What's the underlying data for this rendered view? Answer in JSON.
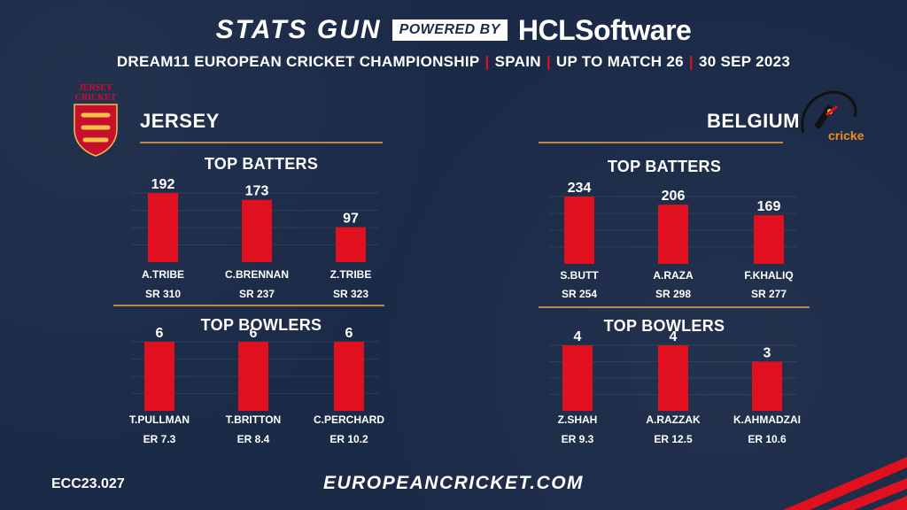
{
  "header": {
    "brand": "STATS GUN",
    "powered_by": "POWERED BY",
    "sponsor": "HCLSoftware",
    "subtitle_parts": [
      "DREAM11 EUROPEAN CRICKET CHAMPIONSHIP",
      "SPAIN",
      "UP TO MATCH 26",
      "30 SEP 2023"
    ],
    "separator": "|"
  },
  "footer": {
    "code": "ECC23.027",
    "site": "EUROPEANCRICKET.COM"
  },
  "logos": {
    "jersey_text": "JERSEY CRICKET",
    "belgium_text": "cricket belgium"
  },
  "colors": {
    "background": "#1b2a47",
    "bar": "#e0101e",
    "gold": "#b8894a"
  },
  "teams": [
    {
      "name": "JERSEY",
      "batters_title": "TOP BATTERS",
      "bowlers_title": "TOP BOWLERS"
    },
    {
      "name": "BELGIUM",
      "batters_title": "TOP BATTERS",
      "bowlers_title": "TOP BOWLERS"
    }
  ],
  "chart_data": [
    {
      "type": "bar",
      "title": "TOP BATTERS",
      "categories": [
        "A.TRIBE",
        "C.BRENNAN",
        "Z.TRIBE"
      ],
      "values": [
        192,
        173,
        97
      ],
      "sublabels": [
        "SR 310",
        "SR 237",
        "SR 323"
      ],
      "ylim": [
        0,
        192
      ]
    },
    {
      "type": "bar",
      "title": "TOP BOWLERS",
      "categories": [
        "T.PULLMAN",
        "T.BRITTON",
        "C.PERCHARD"
      ],
      "values": [
        6,
        6,
        6
      ],
      "sublabels": [
        "ER 7.3",
        "ER 8.4",
        "ER 10.2"
      ],
      "ylim": [
        0,
        6
      ]
    },
    {
      "type": "bar",
      "title": "TOP BATTERS",
      "categories": [
        "S.BUTT",
        "A.RAZA",
        "F.KHALIQ"
      ],
      "values": [
        234,
        206,
        169
      ],
      "sublabels": [
        "SR 254",
        "SR 298",
        "SR 277"
      ],
      "ylim": [
        0,
        234
      ]
    },
    {
      "type": "bar",
      "title": "TOP BOWLERS",
      "categories": [
        "Z.SHAH",
        "A.RAZZAK",
        "K.AHMADZAI"
      ],
      "values": [
        4,
        4,
        3
      ],
      "sublabels": [
        "ER 9.3",
        "ER 12.5",
        "ER 10.6"
      ],
      "ylim": [
        0,
        4
      ]
    }
  ]
}
